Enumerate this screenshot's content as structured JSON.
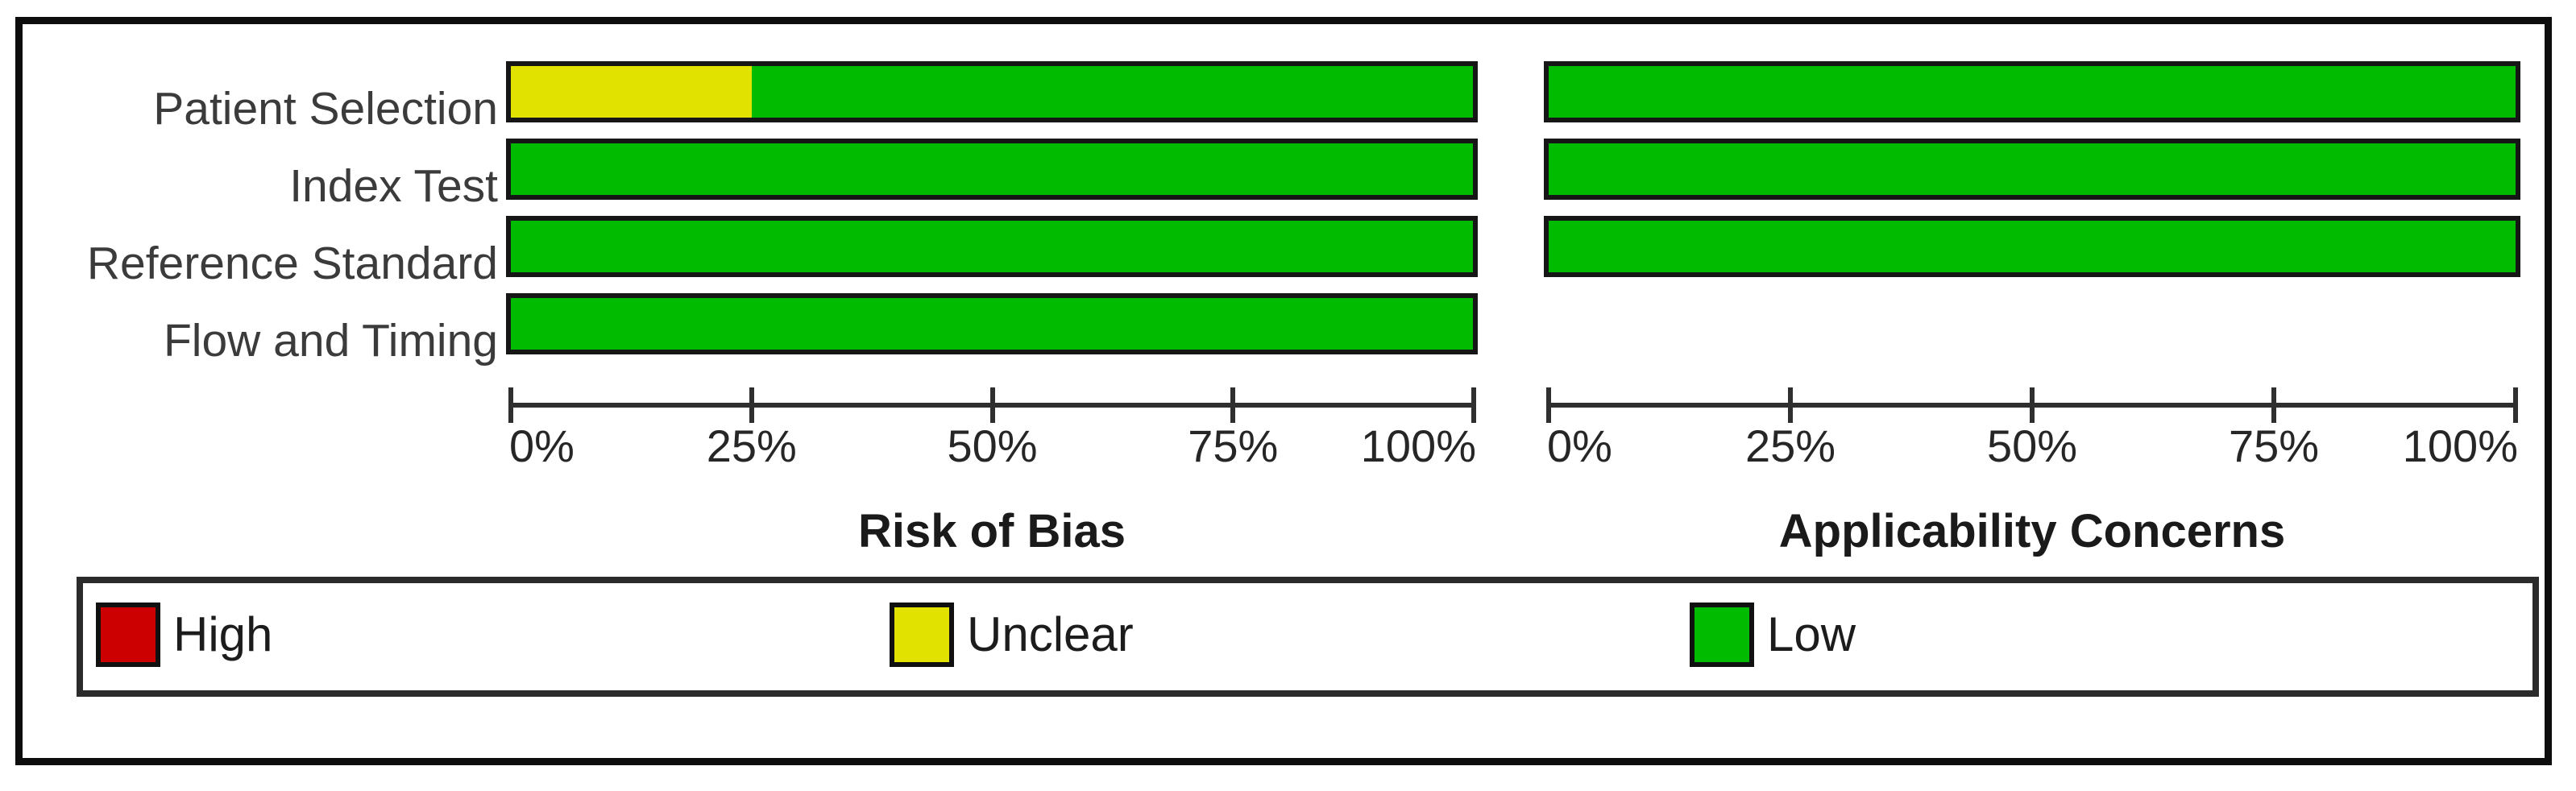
{
  "chart_data": {
    "type": "bar",
    "subtype": "stacked-horizontal-percentage",
    "categories": [
      "Patient Selection",
      "Index Test",
      "Reference Standard",
      "Flow and Timing"
    ],
    "panels": [
      {
        "title": "Risk of Bias",
        "categories": [
          "Patient Selection",
          "Index Test",
          "Reference Standard",
          "Flow and Timing"
        ],
        "series": [
          {
            "name": "High",
            "values": [
              0,
              0,
              0,
              0
            ]
          },
          {
            "name": "Unclear",
            "values": [
              25,
              0,
              0,
              0
            ]
          },
          {
            "name": "Low",
            "values": [
              75,
              100,
              100,
              100
            ]
          }
        ],
        "x_ticks": [
          "0%",
          "25%",
          "50%",
          "75%",
          "100%"
        ],
        "xlim": [
          0,
          100
        ]
      },
      {
        "title": "Applicability Concerns",
        "categories": [
          "Patient Selection",
          "Index Test",
          "Reference Standard"
        ],
        "series": [
          {
            "name": "High",
            "values": [
              0,
              0,
              0
            ]
          },
          {
            "name": "Unclear",
            "values": [
              0,
              0,
              0
            ]
          },
          {
            "name": "Low",
            "values": [
              100,
              100,
              100
            ]
          }
        ],
        "x_ticks": [
          "0%",
          "25%",
          "50%",
          "75%",
          "100%"
        ],
        "xlim": [
          0,
          100
        ]
      }
    ],
    "legend": [
      {
        "label": "High",
        "color": "#CC0000"
      },
      {
        "label": "Unclear",
        "color": "#E2E200"
      },
      {
        "label": "Low",
        "color": "#00BB00"
      }
    ],
    "legend_position": "bottom",
    "grid": false
  }
}
